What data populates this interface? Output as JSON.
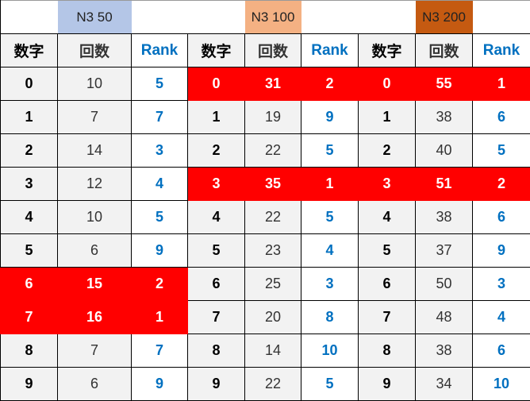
{
  "colors": {
    "n3_50": "#b4c6e7",
    "n3_100": "#f4b183",
    "n3_200": "#c55a11",
    "highlight": "#ff0000",
    "rank_text": "#0070c0",
    "gray_cell": "#f2f2f2"
  },
  "groups": [
    {
      "title": "N3 50",
      "headers": [
        "数字",
        "回数",
        "Rank"
      ],
      "rows": [
        [
          "0",
          "10",
          "5"
        ],
        [
          "1",
          "7",
          "7"
        ],
        [
          "2",
          "14",
          "3"
        ],
        [
          "3",
          "12",
          "4"
        ],
        [
          "4",
          "10",
          "5"
        ],
        [
          "5",
          "6",
          "9"
        ],
        [
          "6",
          "15",
          "2"
        ],
        [
          "7",
          "16",
          "1"
        ],
        [
          "8",
          "7",
          "7"
        ],
        [
          "9",
          "6",
          "9"
        ]
      ],
      "highlighted_rows": [
        6,
        7
      ]
    },
    {
      "title": "N3 100",
      "headers": [
        "数字",
        "回数",
        "Rank"
      ],
      "rows": [
        [
          "0",
          "31",
          "2"
        ],
        [
          "1",
          "19",
          "9"
        ],
        [
          "2",
          "22",
          "5"
        ],
        [
          "3",
          "35",
          "1"
        ],
        [
          "4",
          "22",
          "5"
        ],
        [
          "5",
          "23",
          "4"
        ],
        [
          "6",
          "25",
          "3"
        ],
        [
          "7",
          "20",
          "8"
        ],
        [
          "8",
          "14",
          "10"
        ],
        [
          "9",
          "22",
          "5"
        ]
      ],
      "highlighted_rows": [
        0,
        3
      ]
    },
    {
      "title": "N3 200",
      "headers": [
        "数字",
        "回数",
        "Rank"
      ],
      "rows": [
        [
          "0",
          "55",
          "1"
        ],
        [
          "1",
          "38",
          "6"
        ],
        [
          "2",
          "40",
          "5"
        ],
        [
          "3",
          "51",
          "2"
        ],
        [
          "4",
          "38",
          "6"
        ],
        [
          "5",
          "37",
          "9"
        ],
        [
          "6",
          "50",
          "3"
        ],
        [
          "7",
          "48",
          "4"
        ],
        [
          "8",
          "38",
          "6"
        ],
        [
          "9",
          "34",
          "10"
        ]
      ],
      "highlighted_rows": [
        0,
        3
      ]
    }
  ]
}
